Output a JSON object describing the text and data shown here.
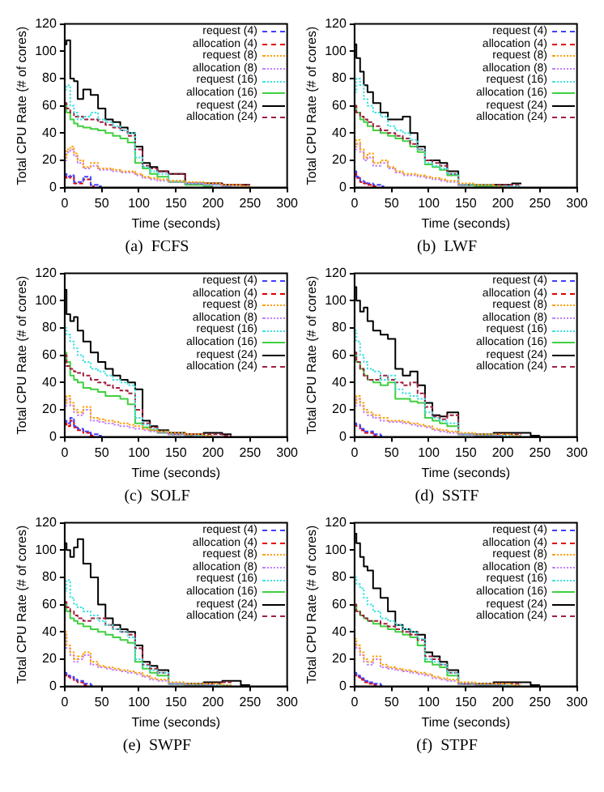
{
  "chart_data": [
    {
      "type": "step",
      "title": "(a)  FCFS",
      "xlabel": "Time (seconds)",
      "ylabel": "Total CPU Rate (# of cores)",
      "xlim": [
        0,
        300
      ],
      "ylim": [
        0,
        120
      ],
      "xticks": [
        0,
        50,
        100,
        150,
        200,
        250,
        300
      ],
      "yticks": [
        0,
        20,
        40,
        60,
        80,
        100,
        120
      ],
      "legend": "top right",
      "marker": "none",
      "x": [
        0,
        5,
        10,
        15,
        20,
        30,
        40,
        50,
        60,
        70,
        80,
        90,
        100,
        110,
        120,
        130,
        150,
        175,
        200,
        225,
        250
      ],
      "series": [
        {
          "name": "request (4)",
          "color": "#4040ff",
          "line_style": "dashed",
          "values": [
            10,
            8,
            9,
            4,
            4,
            8,
            2,
            1,
            null,
            null,
            null,
            null,
            null,
            null,
            null,
            null,
            null,
            null,
            null,
            null,
            null
          ]
        },
        {
          "name": "allocation (4)",
          "color": "#e00000",
          "line_style": "dashed",
          "values": [
            8,
            7,
            8,
            3,
            3,
            6,
            1,
            null,
            null,
            null,
            null,
            null,
            null,
            null,
            null,
            null,
            null,
            null,
            null,
            null,
            null
          ]
        },
        {
          "name": "request (8)",
          "color": "#ffa000",
          "line_style": "dotted",
          "values": [
            22,
            28,
            30,
            25,
            20,
            15,
            18,
            14,
            14,
            13,
            12,
            12,
            10,
            8,
            7,
            6,
            5,
            4,
            3,
            2,
            1
          ]
        },
        {
          "name": "allocation (8)",
          "color": "#c080ff",
          "line_style": "dotted",
          "values": [
            20,
            26,
            28,
            23,
            18,
            14,
            16,
            13,
            13,
            12,
            11,
            11,
            9,
            7,
            6,
            5,
            4,
            3,
            2,
            1,
            null
          ]
        },
        {
          "name": "request (16)",
          "color": "#40e0e0",
          "line_style": "dotted",
          "values": [
            72,
            75,
            60,
            55,
            50,
            52,
            55,
            50,
            48,
            45,
            42,
            40,
            22,
            15,
            12,
            10,
            5,
            3,
            2,
            1,
            null
          ]
        },
        {
          "name": "allocation (16)",
          "color": "#40d040",
          "line_style": "solid",
          "values": [
            62,
            55,
            50,
            47,
            45,
            44,
            43,
            42,
            40,
            38,
            36,
            33,
            18,
            14,
            10,
            8,
            4,
            2,
            1,
            null,
            null
          ]
        },
        {
          "name": "request (24)",
          "color": "#000000",
          "line_style": "solid",
          "values": [
            105,
            108,
            80,
            78,
            65,
            72,
            68,
            58,
            50,
            48,
            44,
            40,
            30,
            18,
            15,
            12,
            10,
            3,
            3,
            2,
            2
          ]
        },
        {
          "name": "allocation (24)",
          "color": "#a02040",
          "line_style": "dashed",
          "values": [
            62,
            58,
            55,
            52,
            52,
            50,
            50,
            48,
            46,
            44,
            42,
            38,
            28,
            16,
            14,
            12,
            10,
            3,
            3,
            2,
            2
          ]
        }
      ]
    },
    {
      "type": "step",
      "title": "(b)  LWF",
      "xlabel": "Time (seconds)",
      "ylabel": "Total CPU Rate (# of cores)",
      "xlim": [
        0,
        300
      ],
      "ylim": [
        0,
        120
      ],
      "xticks": [
        0,
        50,
        100,
        150,
        200,
        250,
        300
      ],
      "yticks": [
        0,
        20,
        40,
        60,
        80,
        100,
        120
      ],
      "legend": "top right",
      "marker": "none",
      "x": [
        0,
        5,
        10,
        15,
        20,
        30,
        40,
        50,
        60,
        70,
        80,
        90,
        100,
        110,
        120,
        130,
        150,
        175,
        200,
        225
      ],
      "series": [
        {
          "name": "request (4)",
          "color": "#4040ff",
          "line_style": "dashed",
          "values": [
            12,
            8,
            5,
            4,
            3,
            2,
            1,
            null,
            null,
            null,
            null,
            null,
            null,
            null,
            null,
            null,
            null,
            null,
            null,
            null
          ]
        },
        {
          "name": "allocation (4)",
          "color": "#e00000",
          "line_style": "dashed",
          "values": [
            10,
            7,
            4,
            3,
            2,
            1,
            null,
            null,
            null,
            null,
            null,
            null,
            null,
            null,
            null,
            null,
            null,
            null,
            null,
            null
          ]
        },
        {
          "name": "request (8)",
          "color": "#ffa000",
          "line_style": "dotted",
          "values": [
            30,
            35,
            28,
            22,
            25,
            18,
            20,
            15,
            12,
            10,
            10,
            9,
            8,
            7,
            6,
            5,
            3,
            2,
            1,
            null
          ]
        },
        {
          "name": "allocation (8)",
          "color": "#c080ff",
          "line_style": "dotted",
          "values": [
            28,
            32,
            26,
            20,
            22,
            16,
            18,
            14,
            11,
            9,
            9,
            8,
            7,
            6,
            5,
            4,
            2,
            null,
            null,
            null
          ]
        },
        {
          "name": "request (16)",
          "color": "#40e0e0",
          "line_style": "dotted",
          "values": [
            70,
            80,
            75,
            65,
            60,
            55,
            52,
            45,
            42,
            40,
            35,
            28,
            18,
            16,
            14,
            10,
            2,
            2,
            1,
            1
          ]
        },
        {
          "name": "allocation (16)",
          "color": "#40d040",
          "line_style": "solid",
          "values": [
            60,
            55,
            50,
            48,
            45,
            42,
            40,
            38,
            36,
            34,
            30,
            26,
            17,
            15,
            13,
            9,
            2,
            1,
            1,
            null
          ]
        },
        {
          "name": "request (24)",
          "color": "#000000",
          "line_style": "solid",
          "values": [
            105,
            95,
            85,
            75,
            70,
            62,
            55,
            50,
            50,
            52,
            40,
            30,
            20,
            20,
            18,
            12,
            2,
            2,
            2,
            3
          ]
        },
        {
          "name": "allocation (24)",
          "color": "#a02040",
          "line_style": "dashed",
          "values": [
            60,
            55,
            52,
            50,
            48,
            45,
            42,
            40,
            38,
            36,
            32,
            28,
            20,
            18,
            16,
            10,
            2,
            2,
            2,
            2
          ]
        }
      ]
    },
    {
      "type": "step",
      "title": "(c)  SOLF",
      "xlabel": "Time (seconds)",
      "ylabel": "Total CPU Rate (# of cores)",
      "xlim": [
        0,
        300
      ],
      "ylim": [
        0,
        120
      ],
      "xticks": [
        0,
        50,
        100,
        150,
        200,
        250,
        300
      ],
      "yticks": [
        0,
        20,
        40,
        60,
        80,
        100,
        120
      ],
      "legend": "top right",
      "marker": "none",
      "x": [
        0,
        5,
        10,
        15,
        20,
        30,
        40,
        50,
        60,
        70,
        80,
        90,
        100,
        110,
        120,
        130,
        150,
        175,
        200,
        225
      ],
      "series": [
        {
          "name": "request (4)",
          "color": "#4040ff",
          "line_style": "dashed",
          "values": [
            12,
            10,
            14,
            8,
            6,
            4,
            2,
            1,
            null,
            null,
            null,
            null,
            null,
            null,
            null,
            null,
            null,
            null,
            null,
            null
          ]
        },
        {
          "name": "allocation (4)",
          "color": "#e00000",
          "line_style": "dashed",
          "values": [
            10,
            8,
            12,
            7,
            5,
            3,
            1,
            null,
            null,
            null,
            null,
            null,
            null,
            null,
            null,
            null,
            null,
            null,
            null,
            null
          ]
        },
        {
          "name": "request (8)",
          "color": "#ffa000",
          "line_style": "dotted",
          "values": [
            25,
            30,
            25,
            20,
            18,
            22,
            14,
            13,
            12,
            11,
            10,
            9,
            8,
            6,
            5,
            4,
            3,
            2,
            1,
            null
          ]
        },
        {
          "name": "allocation (8)",
          "color": "#c080ff",
          "line_style": "dotted",
          "values": [
            23,
            28,
            23,
            18,
            16,
            20,
            12,
            11,
            10,
            9,
            8,
            7,
            6,
            5,
            4,
            3,
            2,
            1,
            null,
            null
          ]
        },
        {
          "name": "request (16)",
          "color": "#40e0e0",
          "line_style": "dotted",
          "values": [
            80,
            75,
            70,
            65,
            60,
            55,
            50,
            48,
            45,
            42,
            40,
            38,
            14,
            9,
            6,
            4,
            2,
            1,
            1,
            null
          ]
        },
        {
          "name": "allocation (16)",
          "color": "#40d040",
          "line_style": "solid",
          "values": [
            62,
            55,
            45,
            42,
            40,
            36,
            35,
            33,
            30,
            30,
            28,
            24,
            10,
            7,
            5,
            3,
            2,
            1,
            null,
            null
          ]
        },
        {
          "name": "request (24)",
          "color": "#000000",
          "line_style": "solid",
          "values": [
            108,
            90,
            85,
            88,
            78,
            70,
            62,
            55,
            50,
            45,
            42,
            40,
            35,
            12,
            8,
            5,
            3,
            2,
            3,
            2
          ]
        },
        {
          "name": "allocation (24)",
          "color": "#a02040",
          "line_style": "dashed",
          "values": [
            60,
            52,
            50,
            48,
            47,
            45,
            42,
            40,
            38,
            36,
            34,
            32,
            20,
            10,
            7,
            4,
            2,
            2,
            2,
            1
          ]
        }
      ]
    },
    {
      "type": "step",
      "title": "(d)  SSTF",
      "xlabel": "Time (seconds)",
      "ylabel": "Total CPU Rate (# of cores)",
      "xlim": [
        0,
        300
      ],
      "ylim": [
        0,
        120
      ],
      "xticks": [
        0,
        50,
        100,
        150,
        200,
        250,
        300
      ],
      "yticks": [
        0,
        20,
        40,
        60,
        80,
        100,
        120
      ],
      "legend": "top right",
      "marker": "none",
      "x": [
        0,
        5,
        10,
        15,
        20,
        30,
        40,
        50,
        60,
        70,
        80,
        90,
        100,
        110,
        120,
        130,
        150,
        175,
        200,
        225,
        250
      ],
      "series": [
        {
          "name": "request (4)",
          "color": "#4040ff",
          "line_style": "dashed",
          "values": [
            10,
            9,
            6,
            4,
            4,
            2,
            1,
            null,
            null,
            null,
            null,
            null,
            null,
            null,
            null,
            null,
            null,
            null,
            null,
            null,
            null
          ]
        },
        {
          "name": "allocation (4)",
          "color": "#e00000",
          "line_style": "dashed",
          "values": [
            9,
            8,
            5,
            3,
            3,
            1,
            null,
            null,
            null,
            null,
            null,
            null,
            null,
            null,
            null,
            null,
            null,
            null,
            null,
            null,
            null
          ]
        },
        {
          "name": "request (8)",
          "color": "#ffa000",
          "line_style": "dotted",
          "values": [
            25,
            30,
            25,
            20,
            18,
            16,
            14,
            12,
            12,
            11,
            10,
            9,
            8,
            6,
            5,
            4,
            3,
            2,
            2,
            1,
            null
          ]
        },
        {
          "name": "allocation (8)",
          "color": "#c080ff",
          "line_style": "dotted",
          "values": [
            23,
            28,
            23,
            18,
            16,
            14,
            12,
            11,
            11,
            10,
            9,
            8,
            7,
            5,
            4,
            3,
            2,
            1,
            1,
            null,
            null
          ]
        },
        {
          "name": "request (16)",
          "color": "#40e0e0",
          "line_style": "dotted",
          "values": [
            78,
            70,
            60,
            55,
            50,
            48,
            42,
            45,
            35,
            32,
            30,
            28,
            18,
            14,
            12,
            10,
            2,
            2,
            1,
            1,
            null
          ]
        },
        {
          "name": "allocation (16)",
          "color": "#40d040",
          "line_style": "solid",
          "values": [
            60,
            55,
            50,
            45,
            42,
            40,
            38,
            40,
            28,
            28,
            26,
            25,
            14,
            12,
            10,
            8,
            2,
            1,
            1,
            null,
            null
          ]
        },
        {
          "name": "request (24)",
          "color": "#000000",
          "line_style": "solid",
          "values": [
            110,
            100,
            92,
            95,
            85,
            78,
            75,
            72,
            50,
            45,
            48,
            38,
            25,
            16,
            15,
            18,
            2,
            2,
            3,
            3,
            1
          ]
        },
        {
          "name": "allocation (24)",
          "color": "#a02040",
          "line_style": "dashed",
          "values": [
            62,
            55,
            50,
            45,
            42,
            42,
            45,
            42,
            40,
            38,
            40,
            32,
            22,
            15,
            13,
            16,
            2,
            2,
            2,
            2,
            null
          ]
        }
      ]
    },
    {
      "type": "step",
      "title": "(e)  SWPF",
      "xlabel": "Time (seconds)",
      "ylabel": "Total CPU Rate (# of cores)",
      "xlim": [
        0,
        300
      ],
      "ylim": [
        0,
        120
      ],
      "xticks": [
        0,
        50,
        100,
        150,
        200,
        250,
        300
      ],
      "yticks": [
        0,
        20,
        40,
        60,
        80,
        100,
        120
      ],
      "legend": "top right",
      "marker": "none",
      "x": [
        0,
        5,
        10,
        15,
        20,
        30,
        40,
        50,
        60,
        70,
        80,
        90,
        100,
        110,
        120,
        130,
        150,
        175,
        200,
        225,
        250
      ],
      "series": [
        {
          "name": "request (4)",
          "color": "#4040ff",
          "line_style": "dashed",
          "values": [
            10,
            8,
            7,
            5,
            4,
            2,
            1,
            null,
            null,
            null,
            null,
            null,
            null,
            null,
            null,
            null,
            null,
            null,
            null,
            null,
            null
          ]
        },
        {
          "name": "allocation (4)",
          "color": "#e00000",
          "line_style": "dashed",
          "values": [
            9,
            7,
            6,
            4,
            3,
            1,
            null,
            null,
            null,
            null,
            null,
            null,
            null,
            null,
            null,
            null,
            null,
            null,
            null,
            null,
            null
          ]
        },
        {
          "name": "request (8)",
          "color": "#ffa000",
          "line_style": "dotted",
          "values": [
            40,
            30,
            25,
            20,
            22,
            25,
            18,
            15,
            14,
            13,
            12,
            11,
            10,
            8,
            6,
            5,
            3,
            2,
            2,
            1,
            null
          ]
        },
        {
          "name": "allocation (8)",
          "color": "#c080ff",
          "line_style": "dotted",
          "values": [
            38,
            28,
            23,
            18,
            20,
            23,
            16,
            14,
            13,
            12,
            11,
            10,
            9,
            7,
            5,
            4,
            2,
            1,
            1,
            null,
            null
          ]
        },
        {
          "name": "request (16)",
          "color": "#40e0e0",
          "line_style": "dotted",
          "values": [
            70,
            78,
            65,
            60,
            58,
            55,
            52,
            48,
            45,
            42,
            40,
            36,
            20,
            15,
            12,
            10,
            2,
            2,
            1,
            1,
            null
          ]
        },
        {
          "name": "allocation (16)",
          "color": "#40d040",
          "line_style": "solid",
          "values": [
            60,
            55,
            50,
            48,
            46,
            44,
            42,
            40,
            38,
            36,
            34,
            32,
            18,
            13,
            10,
            8,
            2,
            1,
            1,
            null,
            null
          ]
        },
        {
          "name": "request (24)",
          "color": "#000000",
          "line_style": "solid",
          "values": [
            105,
            100,
            95,
            102,
            108,
            90,
            80,
            60,
            50,
            45,
            42,
            40,
            30,
            18,
            15,
            12,
            2,
            2,
            3,
            4,
            1
          ]
        },
        {
          "name": "allocation (24)",
          "color": "#a02040",
          "line_style": "dashed",
          "values": [
            62,
            58,
            55,
            52,
            50,
            48,
            50,
            50,
            45,
            42,
            40,
            38,
            28,
            16,
            13,
            10,
            2,
            2,
            2,
            3,
            null
          ]
        }
      ]
    },
    {
      "type": "step",
      "title": "(f)  STPF",
      "xlabel": "Time (seconds)",
      "ylabel": "Total CPU Rate (# of cores)",
      "xlim": [
        0,
        300
      ],
      "ylim": [
        0,
        120
      ],
      "xticks": [
        0,
        50,
        100,
        150,
        200,
        250,
        300
      ],
      "yticks": [
        0,
        20,
        40,
        60,
        80,
        100,
        120
      ],
      "legend": "top right",
      "marker": "none",
      "x": [
        0,
        5,
        10,
        15,
        20,
        30,
        40,
        50,
        60,
        70,
        80,
        90,
        100,
        110,
        120,
        130,
        150,
        175,
        200,
        225,
        250
      ],
      "series": [
        {
          "name": "request (4)",
          "color": "#4040ff",
          "line_style": "dashed",
          "values": [
            10,
            8,
            6,
            4,
            3,
            2,
            1,
            null,
            null,
            null,
            null,
            null,
            null,
            null,
            null,
            null,
            null,
            null,
            null,
            null,
            null
          ]
        },
        {
          "name": "allocation (4)",
          "color": "#e00000",
          "line_style": "dashed",
          "values": [
            9,
            7,
            5,
            3,
            2,
            1,
            null,
            null,
            null,
            null,
            null,
            null,
            null,
            null,
            null,
            null,
            null,
            null,
            null,
            null,
            null
          ]
        },
        {
          "name": "request (8)",
          "color": "#ffa000",
          "line_style": "dotted",
          "values": [
            35,
            30,
            25,
            20,
            18,
            22,
            16,
            14,
            13,
            12,
            11,
            10,
            9,
            7,
            6,
            5,
            3,
            2,
            2,
            1,
            null
          ]
        },
        {
          "name": "allocation (8)",
          "color": "#c080ff",
          "line_style": "dotted",
          "values": [
            33,
            28,
            23,
            18,
            16,
            20,
            14,
            13,
            12,
            11,
            10,
            9,
            8,
            6,
            5,
            4,
            2,
            1,
            1,
            null,
            null
          ]
        },
        {
          "name": "request (16)",
          "color": "#40e0e0",
          "line_style": "dotted",
          "values": [
            80,
            75,
            72,
            65,
            60,
            55,
            50,
            48,
            45,
            42,
            40,
            35,
            20,
            18,
            16,
            10,
            2,
            2,
            1,
            1,
            null
          ]
        },
        {
          "name": "allocation (16)",
          "color": "#40d040",
          "line_style": "solid",
          "values": [
            60,
            55,
            52,
            50,
            48,
            46,
            44,
            42,
            40,
            38,
            36,
            30,
            18,
            16,
            14,
            8,
            2,
            1,
            1,
            null,
            null
          ]
        },
        {
          "name": "request (24)",
          "color": "#000000",
          "line_style": "solid",
          "values": [
            112,
            105,
            95,
            88,
            85,
            72,
            65,
            55,
            45,
            42,
            40,
            38,
            25,
            22,
            18,
            12,
            2,
            2,
            3,
            3,
            1
          ]
        },
        {
          "name": "allocation (24)",
          "color": "#a02040",
          "line_style": "dashed",
          "values": [
            60,
            55,
            52,
            50,
            48,
            48,
            46,
            44,
            42,
            40,
            38,
            34,
            22,
            20,
            16,
            10,
            2,
            2,
            2,
            2,
            null
          ]
        }
      ]
    }
  ]
}
